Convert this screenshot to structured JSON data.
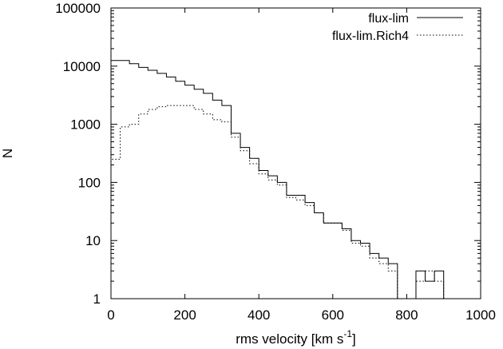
{
  "chart_data": {
    "type": "line",
    "step": true,
    "xlabel": "rms velocity [km s",
    "xlabel_sup": "-1",
    "xlabel_close": "]",
    "ylabel": "N",
    "xlim": [
      0,
      1000
    ],
    "ylim": [
      1,
      100000
    ],
    "yscale": "log",
    "grid": false,
    "legend_position": "top-right",
    "x_ticks": [
      0,
      200,
      400,
      600,
      800,
      1000
    ],
    "x_tick_labels": [
      "0",
      "200",
      "400",
      "600",
      "800",
      "1000"
    ],
    "y_ticks": [
      1,
      10,
      100,
      1000,
      10000,
      100000
    ],
    "y_tick_labels": [
      "1",
      "10",
      "100",
      "1000",
      "10000",
      "100000"
    ],
    "bin_edges": [
      0,
      25,
      50,
      75,
      100,
      125,
      150,
      175,
      200,
      225,
      250,
      275,
      300,
      325,
      350,
      375,
      400,
      425,
      450,
      475,
      500,
      525,
      550,
      575,
      600,
      625,
      650,
      675,
      700,
      725,
      750,
      775,
      800,
      825,
      850,
      875,
      900
    ],
    "series": [
      {
        "name": "flux-lim",
        "style": "solid",
        "values": [
          12500,
          12500,
          11000,
          9500,
          8500,
          7500,
          6500,
          5500,
          4700,
          4000,
          3400,
          2600,
          2100,
          700,
          400,
          260,
          160,
          130,
          100,
          60,
          60,
          45,
          30,
          20,
          20,
          16,
          10,
          9,
          6,
          5,
          4,
          1,
          1,
          3,
          2,
          3,
          1
        ],
        "color": "#000000"
      },
      {
        "name": "flux-lim.Rich4",
        "style": "dotted",
        "values": [
          250,
          900,
          1000,
          1500,
          1800,
          2000,
          2100,
          2100,
          2100,
          1800,
          1500,
          1200,
          1100,
          600,
          350,
          210,
          140,
          110,
          90,
          55,
          50,
          40,
          30,
          20,
          20,
          15,
          9,
          8,
          5,
          4,
          3,
          1,
          1,
          2,
          3,
          2,
          1
        ],
        "color": "#000000"
      }
    ]
  }
}
